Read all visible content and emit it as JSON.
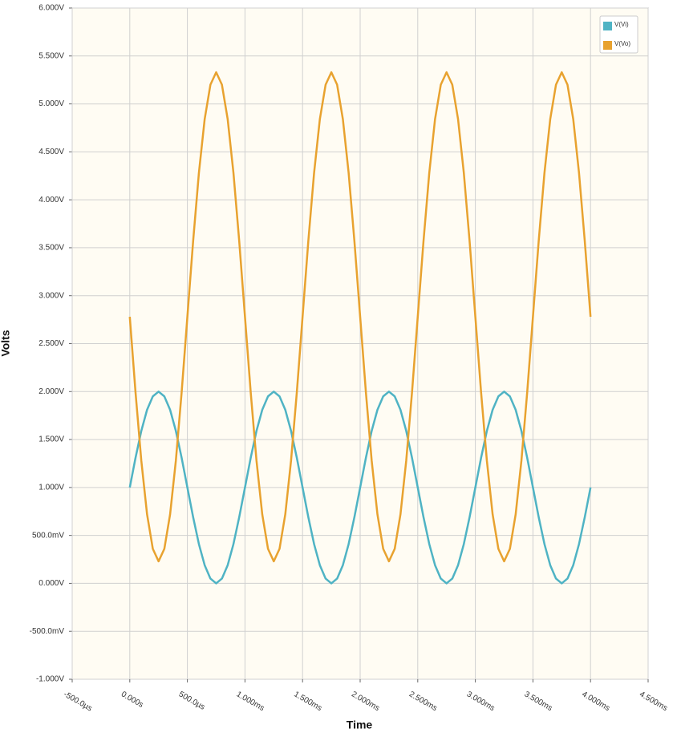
{
  "chart_data": {
    "type": "line",
    "x_label": "Time",
    "y_label": "Volts",
    "x": [
      0,
      0.05,
      0.1,
      0.15,
      0.2,
      0.25,
      0.3,
      0.35,
      0.4,
      0.45,
      0.5,
      0.55,
      0.6,
      0.65,
      0.7,
      0.75,
      0.8,
      0.85,
      0.9,
      0.95,
      1,
      1.05,
      1.1,
      1.15,
      1.2,
      1.25,
      1.3,
      1.35,
      1.4,
      1.45,
      1.5,
      1.55,
      1.6,
      1.65,
      1.7,
      1.75,
      1.8,
      1.85,
      1.9,
      1.95,
      2,
      2.05,
      2.1,
      2.15,
      2.2,
      2.25,
      2.3,
      2.35,
      2.4,
      2.45,
      2.5,
      2.55,
      2.6,
      2.65,
      2.7,
      2.75,
      2.8,
      2.85,
      2.9,
      2.95,
      3,
      3.05,
      3.1,
      3.15,
      3.2,
      3.25,
      3.3,
      3.35,
      3.4,
      3.45,
      3.5,
      3.55,
      3.6,
      3.65,
      3.7,
      3.75,
      3.8,
      3.85,
      3.9,
      3.95,
      4
    ],
    "series": [
      {
        "name": "V(Vi)",
        "color": "#4fb3c4",
        "values": [
          1,
          1.31,
          1.59,
          1.81,
          1.95,
          2,
          1.95,
          1.81,
          1.59,
          1.31,
          1,
          0.69,
          0.41,
          0.19,
          0.05,
          0,
          0.05,
          0.19,
          0.41,
          0.69,
          1,
          1.31,
          1.59,
          1.81,
          1.95,
          2,
          1.95,
          1.81,
          1.59,
          1.31,
          1,
          0.69,
          0.41,
          0.19,
          0.05,
          0,
          0.05,
          0.19,
          0.41,
          0.69,
          1,
          1.31,
          1.59,
          1.81,
          1.95,
          2,
          1.95,
          1.81,
          1.59,
          1.31,
          1,
          0.69,
          0.41,
          0.19,
          0.05,
          0,
          0.05,
          0.19,
          0.41,
          0.69,
          1,
          1.31,
          1.59,
          1.81,
          1.95,
          2,
          1.95,
          1.81,
          1.59,
          1.31,
          1,
          0.69,
          0.41,
          0.19,
          0.05,
          0,
          0.05,
          0.19,
          0.41,
          0.69,
          1
        ]
      },
      {
        "name": "V(Vo)",
        "color": "#e8a22f",
        "values": [
          2.78,
          1.99,
          1.28,
          0.72,
          0.36,
          0.23,
          0.36,
          0.72,
          1.28,
          1.99,
          2.78,
          3.57,
          4.28,
          4.84,
          5.2,
          5.33,
          5.2,
          4.84,
          4.28,
          3.57,
          2.78,
          1.99,
          1.28,
          0.72,
          0.36,
          0.23,
          0.36,
          0.72,
          1.28,
          1.99,
          2.78,
          3.57,
          4.28,
          4.84,
          5.2,
          5.33,
          5.2,
          4.84,
          4.28,
          3.57,
          2.78,
          1.99,
          1.28,
          0.72,
          0.36,
          0.23,
          0.36,
          0.72,
          1.28,
          1.99,
          2.78,
          3.57,
          4.28,
          4.84,
          5.2,
          5.33,
          5.2,
          4.84,
          4.28,
          3.57,
          2.78,
          1.99,
          1.28,
          0.72,
          0.36,
          0.23,
          0.36,
          0.72,
          1.28,
          1.99,
          2.78,
          3.57,
          4.28,
          4.84,
          5.2,
          5.33,
          5.2,
          4.84,
          4.28,
          3.57,
          2.78
        ]
      }
    ],
    "xlim": [
      -0.5,
      4.5
    ],
    "xticks": [
      {
        "value": -0.5,
        "label": "-500.0µs"
      },
      {
        "value": 0,
        "label": "0.000s"
      },
      {
        "value": 0.5,
        "label": "500.0µs"
      },
      {
        "value": 1,
        "label": "1.000ms"
      },
      {
        "value": 1.5,
        "label": "1.500ms"
      },
      {
        "value": 2,
        "label": "2.000ms"
      },
      {
        "value": 2.5,
        "label": "2.500ms"
      },
      {
        "value": 3,
        "label": "3.000ms"
      },
      {
        "value": 3.5,
        "label": "3.500ms"
      },
      {
        "value": 4,
        "label": "4.000ms"
      },
      {
        "value": 4.5,
        "label": "4.500ms"
      }
    ],
    "ylim": [
      -1,
      6
    ],
    "yticks": [
      {
        "value": -1,
        "label": "-1.000V"
      },
      {
        "value": -0.5,
        "label": "-500.0mV"
      },
      {
        "value": 0,
        "label": "0.000V"
      },
      {
        "value": 0.5,
        "label": "500.0mV"
      },
      {
        "value": 1,
        "label": "1.000V"
      },
      {
        "value": 1.5,
        "label": "1.500V"
      },
      {
        "value": 2,
        "label": "2.000V"
      },
      {
        "value": 2.5,
        "label": "2.500V"
      },
      {
        "value": 3,
        "label": "3.000V"
      },
      {
        "value": 3.5,
        "label": "3.500V"
      },
      {
        "value": 4,
        "label": "4.000V"
      },
      {
        "value": 4.5,
        "label": "4.500V"
      },
      {
        "value": 5,
        "label": "5.000V"
      },
      {
        "value": 5.5,
        "label": "5.500V"
      },
      {
        "value": 6,
        "label": "6.000V"
      }
    ],
    "grid": true,
    "legend": "top-right"
  }
}
